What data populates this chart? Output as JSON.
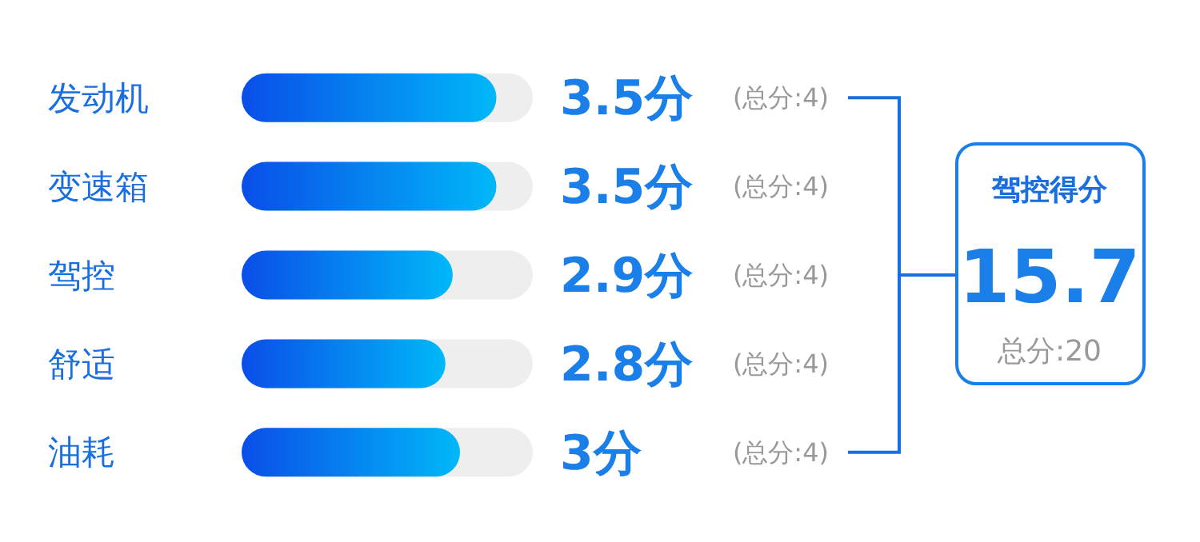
{
  "chart_data": {
    "type": "bar",
    "orientation": "horizontal",
    "categories": [
      "发动机",
      "变速箱",
      "驾控",
      "舒适",
      "油耗"
    ],
    "values": [
      3.5,
      3.5,
      2.9,
      2.8,
      3
    ],
    "value_labels": [
      "3.5分",
      "3.5分",
      "2.9分",
      "2.8分",
      "3分"
    ],
    "color": "#0a4ee8",
    "xlim": [
      0,
      4
    ],
    "tick_labels": "y",
    "legend": false,
    "annotations": [
      "(总分:4)",
      "(总分:4)",
      "(总分:4)",
      "(总分:4)",
      "(总分:4)",
      "驾控得分",
      "15.7",
      "总分:20"
    ]
  }
}
